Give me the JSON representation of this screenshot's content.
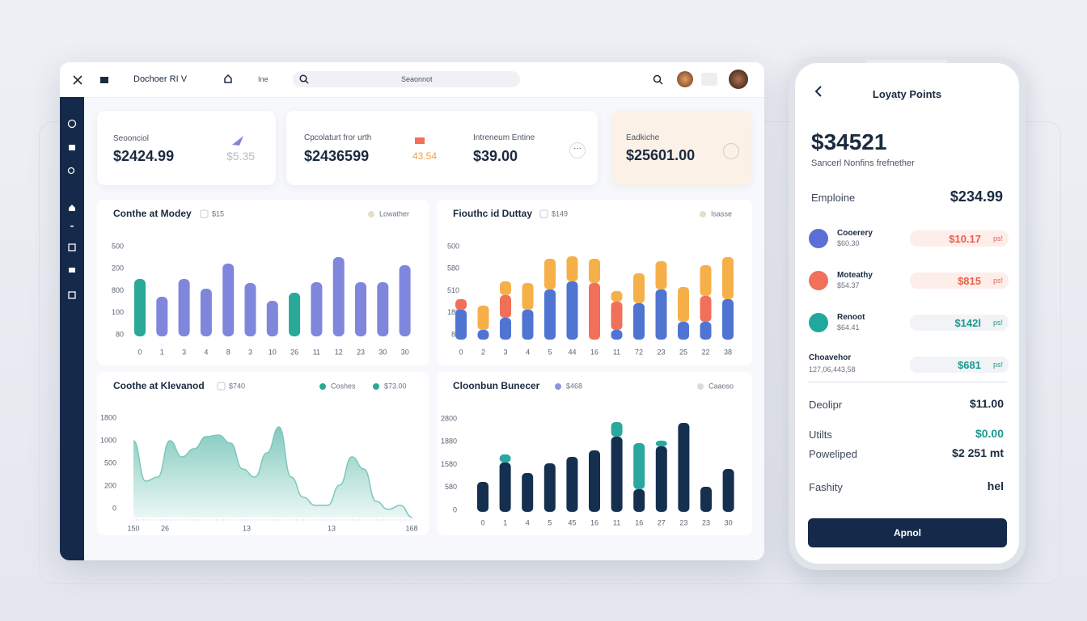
{
  "topbar": {
    "title": "Dochoer RI V",
    "nav_item": "Ine",
    "search_placeholder": "Seaonnot"
  },
  "stats": {
    "card1": {
      "label": "Seoonciol",
      "value": "$2424.99",
      "secondary": "$5.35"
    },
    "card2": {
      "label": "Cpcolaturt fror urth",
      "value": "$2436599",
      "secondary": "43.54",
      "label2": "Intreneum Entine",
      "value2": "$39.00"
    },
    "card3": {
      "label": "Eadkiche",
      "value": "$25601.00"
    }
  },
  "chart_data": [
    {
      "type": "bar",
      "title": "Conthe at Modey",
      "legend": [
        {
          "label": "$15",
          "shape": "square",
          "color": "#d9dbe2"
        },
        {
          "label": "Lowather",
          "shape": "dot",
          "color": "#e6dccb"
        }
      ],
      "ylabels": [
        "500",
        "200",
        "800",
        "100",
        "80"
      ],
      "categories": [
        "0",
        "1",
        "3",
        "4",
        "8",
        "3",
        "10",
        "26",
        "11",
        "12",
        "23",
        "30",
        "30"
      ],
      "values": [
        71,
        49,
        71,
        59,
        90,
        66,
        44,
        54,
        67,
        98,
        67,
        67,
        88
      ],
      "colors": [
        "#2aa898",
        "#7f86dc",
        "#7f86dc",
        "#7f86dc",
        "#7f86dc",
        "#7f86dc",
        "#7f86dc",
        "#2aa898",
        "#7f86dc",
        "#7f86dc",
        "#7f86dc",
        "#7f86dc",
        "#7f86dc"
      ],
      "ylim": [
        0,
        116
      ]
    },
    {
      "type": "stacked-bar",
      "title": "Fiouthc id Duttay",
      "legend": [
        {
          "label": "$149",
          "shape": "square",
          "color": "#d9dbe2"
        },
        {
          "label": "Isasse",
          "shape": "dot",
          "color": "#e6dccb"
        }
      ],
      "ylabels": [
        "500",
        "580",
        "510",
        "180",
        "80"
      ],
      "categories": [
        "0",
        "2",
        "3",
        "4",
        "5",
        "44",
        "16",
        "11",
        "72",
        "23",
        "25",
        "22",
        "38"
      ],
      "series": [
        {
          "color": "#4f74d2",
          "values": [
            37,
            12,
            27,
            37,
            62,
            72,
            0,
            12,
            45,
            62,
            22,
            22,
            50
          ]
        },
        {
          "color": "#f0705a",
          "values": [
            13,
            0,
            28,
            0,
            0,
            0,
            70,
            35,
            0,
            0,
            0,
            32,
            0
          ]
        },
        {
          "color": "#f5b04a",
          "values": [
            0,
            30,
            17,
            33,
            38,
            31,
            30,
            13,
            37,
            35,
            43,
            38,
            52
          ]
        }
      ],
      "ylim": [
        0,
        115
      ]
    },
    {
      "type": "area",
      "title": "Coothe at Klevanod",
      "legend": [
        {
          "label": "$740",
          "shape": "square",
          "color": "#d9dbe2"
        },
        {
          "label": "Coshes",
          "shape": "dot",
          "color": "#2aa898"
        },
        {
          "label": "$73.00",
          "shape": "dot",
          "color": "#2aa898"
        }
      ],
      "ylabels": [
        "1800",
        "1000",
        "500",
        "200",
        "0"
      ],
      "xlabels": [
        "150",
        "26",
        "13",
        "13",
        "168"
      ],
      "x": [
        0,
        1,
        2,
        3,
        4,
        5,
        6,
        7,
        8,
        9,
        10,
        11,
        12,
        13,
        14,
        15,
        16,
        17,
        18,
        19,
        20,
        21,
        22,
        23
      ],
      "values": [
        95,
        45,
        50,
        95,
        75,
        85,
        100,
        102,
        92,
        60,
        50,
        80,
        112,
        50,
        25,
        15,
        15,
        40,
        75,
        60,
        20,
        10,
        15,
        0
      ],
      "color": "#7cc8bb",
      "xlim": [
        0,
        23
      ],
      "ylim": [
        0,
        130
      ]
    },
    {
      "type": "stacked-bar",
      "title": "Cloonbun Bunecer",
      "legend": [
        {
          "label": "$468",
          "shape": "dot",
          "color": "#8f94dc"
        },
        {
          "label": "Caaoso",
          "shape": "dot",
          "color": "#d9dbe2"
        }
      ],
      "ylabels": [
        "2800",
        "1880",
        "1580",
        "580",
        "0"
      ],
      "categories": [
        "0",
        "1",
        "4",
        "5",
        "45",
        "16",
        "11",
        "16",
        "27",
        "23",
        "23",
        "30"
      ],
      "series": [
        {
          "color": "#15304f",
          "values": [
            37,
            61,
            48,
            60,
            68,
            76,
            93,
            28,
            81,
            110,
            31,
            53
          ]
        },
        {
          "color": "#2aa8a0",
          "values": [
            0,
            10,
            0,
            0,
            0,
            0,
            18,
            57,
            7,
            0,
            0,
            0
          ]
        }
      ],
      "ylim": [
        0,
        120
      ]
    }
  ],
  "phone": {
    "title": "Loyaty Points",
    "points": "$34521",
    "subtitle": "Sancerl Nonfins frefnether",
    "balance_label": "Emploine",
    "balance": "$234.99",
    "items": [
      {
        "name": "Cooerery",
        "sub": "$60.30",
        "amount": "$10.17",
        "tag": "ps!",
        "color": "#5b6fd6",
        "amount_color": "#e8604c",
        "pill": "#fdeee9"
      },
      {
        "name": "Moteathy",
        "sub": "$54.37",
        "amount": "$815",
        "tag": "ps!",
        "color": "#f0705a",
        "amount_color": "#e8604c",
        "pill": "#fdeee9"
      },
      {
        "name": "Renoot",
        "sub": "$64.41",
        "amount": "$142l",
        "tag": "ps!",
        "color": "#1fa89c",
        "amount_color": "#1a9a8e",
        "pill": "#f1f3f6"
      },
      {
        "name": "Choavehor",
        "sub": "127,06,443,58",
        "amount": "$681",
        "tag": "ps!",
        "color": null,
        "amount_color": "#1a9a8e",
        "pill": "#f1f3f6"
      }
    ],
    "rows": [
      {
        "label": "Deolipr",
        "value": "$11.00",
        "color": "#1b2a3f"
      },
      {
        "label": "Utilts",
        "value": "$0.00",
        "color": "#1a9a8e"
      },
      {
        "label": "Poweliped",
        "value": "$2 251 mt",
        "color": "#1b2a3f"
      },
      {
        "label": "Fashity",
        "value": "hel",
        "color": "#1b2a3f"
      }
    ],
    "button": "Apnol"
  }
}
